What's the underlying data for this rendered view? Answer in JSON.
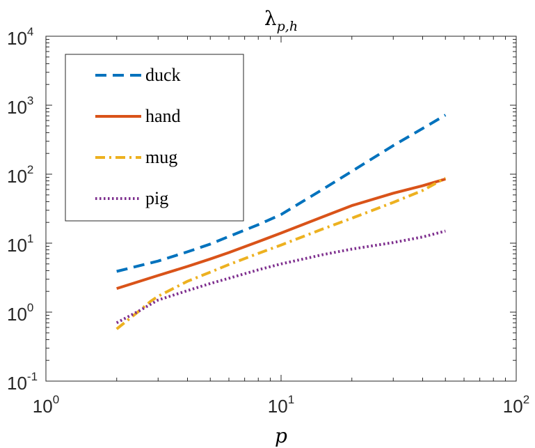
{
  "chart_data": {
    "type": "line",
    "title": "λ",
    "title_subscript": "p,h",
    "xlabel": "p",
    "ylabel": "",
    "xscale": "log",
    "yscale": "log",
    "xlim": [
      1,
      100
    ],
    "ylim": [
      0.1,
      10000
    ],
    "x_ticks": [
      {
        "value": 1,
        "base": "10",
        "exp": "0"
      },
      {
        "value": 10,
        "base": "10",
        "exp": "1"
      },
      {
        "value": 100,
        "base": "10",
        "exp": "2"
      }
    ],
    "y_ticks": [
      {
        "value": 0.1,
        "base": "10",
        "exp": "-1"
      },
      {
        "value": 1,
        "base": "10",
        "exp": "0"
      },
      {
        "value": 10,
        "base": "10",
        "exp": "1"
      },
      {
        "value": 100,
        "base": "10",
        "exp": "2"
      },
      {
        "value": 1000,
        "base": "10",
        "exp": "3"
      },
      {
        "value": 10000,
        "base": "10",
        "exp": "4"
      }
    ],
    "legend_position": "top-left",
    "grid": false,
    "series": [
      {
        "name": "duck",
        "color": "#0072BD",
        "style": "dashed",
        "x": [
          2,
          3,
          4,
          5,
          6,
          8,
          10,
          15,
          20,
          30,
          40,
          50
        ],
        "y": [
          3.9,
          5.5,
          7.5,
          9.7,
          12.5,
          18.5,
          26,
          60,
          110,
          260,
          460,
          720
        ]
      },
      {
        "name": "hand",
        "color": "#D95319",
        "style": "solid",
        "x": [
          2,
          3,
          4,
          5,
          6,
          8,
          10,
          15,
          20,
          30,
          40,
          50
        ],
        "y": [
          2.2,
          3.4,
          4.6,
          5.9,
          7.3,
          10.5,
          14,
          24,
          35,
          53,
          68,
          85
        ]
      },
      {
        "name": "mug",
        "color": "#EDB120",
        "style": "dashdot",
        "x": [
          2,
          2.5,
          2.8,
          3,
          4,
          5,
          6,
          8,
          10,
          15,
          20,
          30,
          40,
          50
        ],
        "y": [
          0.57,
          1.05,
          1.45,
          1.7,
          2.8,
          3.8,
          4.9,
          7.1,
          9.4,
          16,
          23,
          39,
          58,
          88
        ]
      },
      {
        "name": "pig",
        "color": "#7E2F8E",
        "style": "dotted",
        "x": [
          2,
          2.5,
          3,
          4,
          5,
          6,
          8,
          10,
          15,
          20,
          30,
          40,
          50
        ],
        "y": [
          0.7,
          1.05,
          1.5,
          2.05,
          2.6,
          3.1,
          4.1,
          5.0,
          6.8,
          8.2,
          10.2,
          12.3,
          15
        ]
      }
    ]
  }
}
